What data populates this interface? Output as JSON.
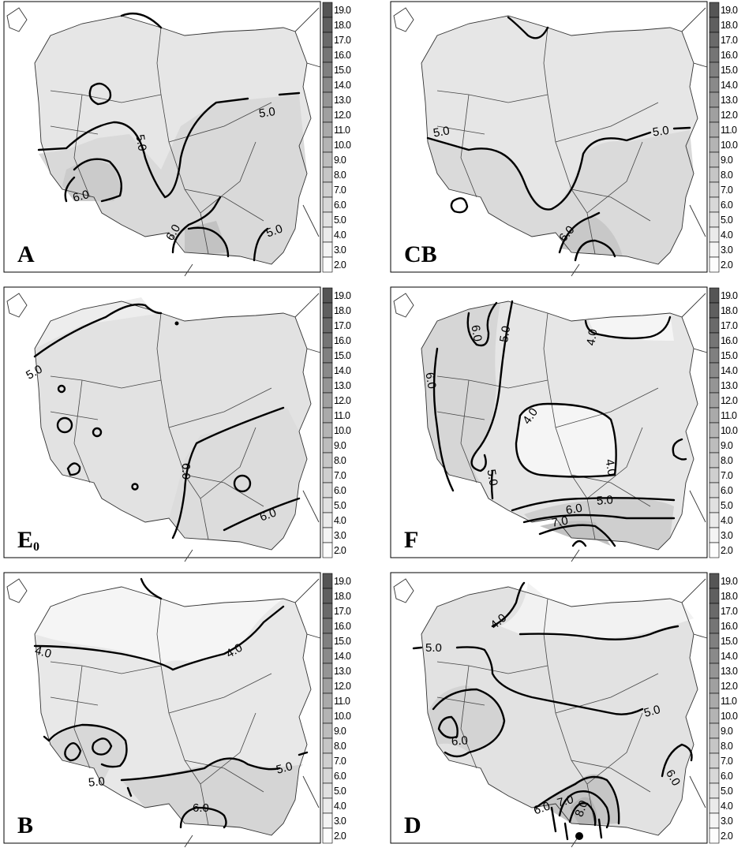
{
  "scale": {
    "labels": [
      "19.0",
      "18.0",
      "17.0",
      "16.0",
      "15.0",
      "14.0",
      "13.0",
      "12.0",
      "11.0",
      "10.0",
      "9.0",
      "8.0",
      "7.0",
      "6.0",
      "5.0",
      "4.0",
      "3.0",
      "2.0"
    ],
    "colors": [
      "#555555",
      "#5f5f5f",
      "#6a6a6a",
      "#757575",
      "#808080",
      "#8a8a8a",
      "#959595",
      "#a0a0a0",
      "#aaaaaa",
      "#b4b4b4",
      "#bdbdbd",
      "#c6c6c6",
      "#cfcfcf",
      "#d8d8d8",
      "#e1e1e1",
      "#ebebeb",
      "#f4f4f4",
      "#fdfdfd"
    ]
  },
  "panels": [
    {
      "id": "A",
      "label": "A",
      "sub": "",
      "isolines": [
        "5.0",
        "5.0",
        "6.0",
        "6.0",
        "5.0"
      ]
    },
    {
      "id": "CB",
      "label": "CB",
      "sub": "",
      "isolines": [
        "5.0",
        "5.0",
        "6.0"
      ]
    },
    {
      "id": "E0",
      "label": "E",
      "sub": "0",
      "isolines": [
        "5.0",
        "6.0",
        "6.0"
      ]
    },
    {
      "id": "F",
      "label": "F",
      "sub": "",
      "isolines": [
        "6.0",
        "6.0",
        "5.0",
        "4.0",
        "4.0",
        "4.0",
        "5.0",
        "5.0",
        "6.0",
        "7.0"
      ]
    },
    {
      "id": "B",
      "label": "B",
      "sub": "",
      "isolines": [
        "4.0",
        "4.0",
        "5.0",
        "5.0",
        "6.0"
      ]
    },
    {
      "id": "D",
      "label": "D",
      "sub": "",
      "isolines": [
        "4.0",
        "5.0",
        "5.0",
        "6.0",
        "6.0",
        "7.0",
        "8.0",
        "6.0"
      ]
    }
  ]
}
